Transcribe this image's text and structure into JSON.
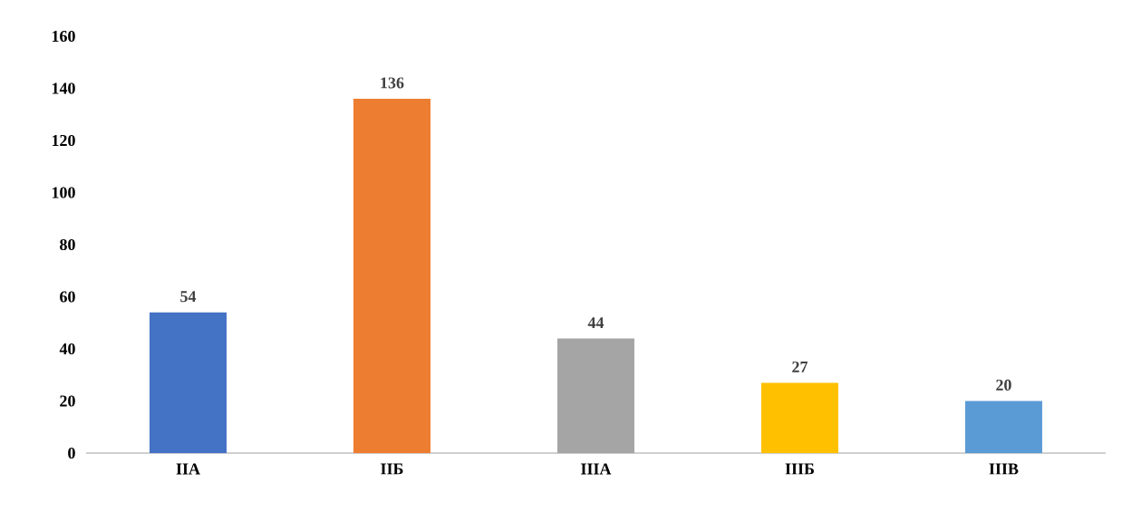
{
  "chart_data": {
    "type": "bar",
    "categories": [
      "ІІА",
      "ІІБ",
      "ІІІА",
      "ІІІБ",
      "ІІІВ"
    ],
    "values": [
      54,
      136,
      44,
      27,
      20
    ],
    "colors": [
      "#4472c4",
      "#ed7d31",
      "#a5a5a5",
      "#ffc000",
      "#5b9bd5"
    ],
    "ylim": [
      0,
      160
    ],
    "yticks": [
      0,
      20,
      40,
      60,
      80,
      100,
      120,
      140,
      160
    ],
    "data_labels": true
  }
}
